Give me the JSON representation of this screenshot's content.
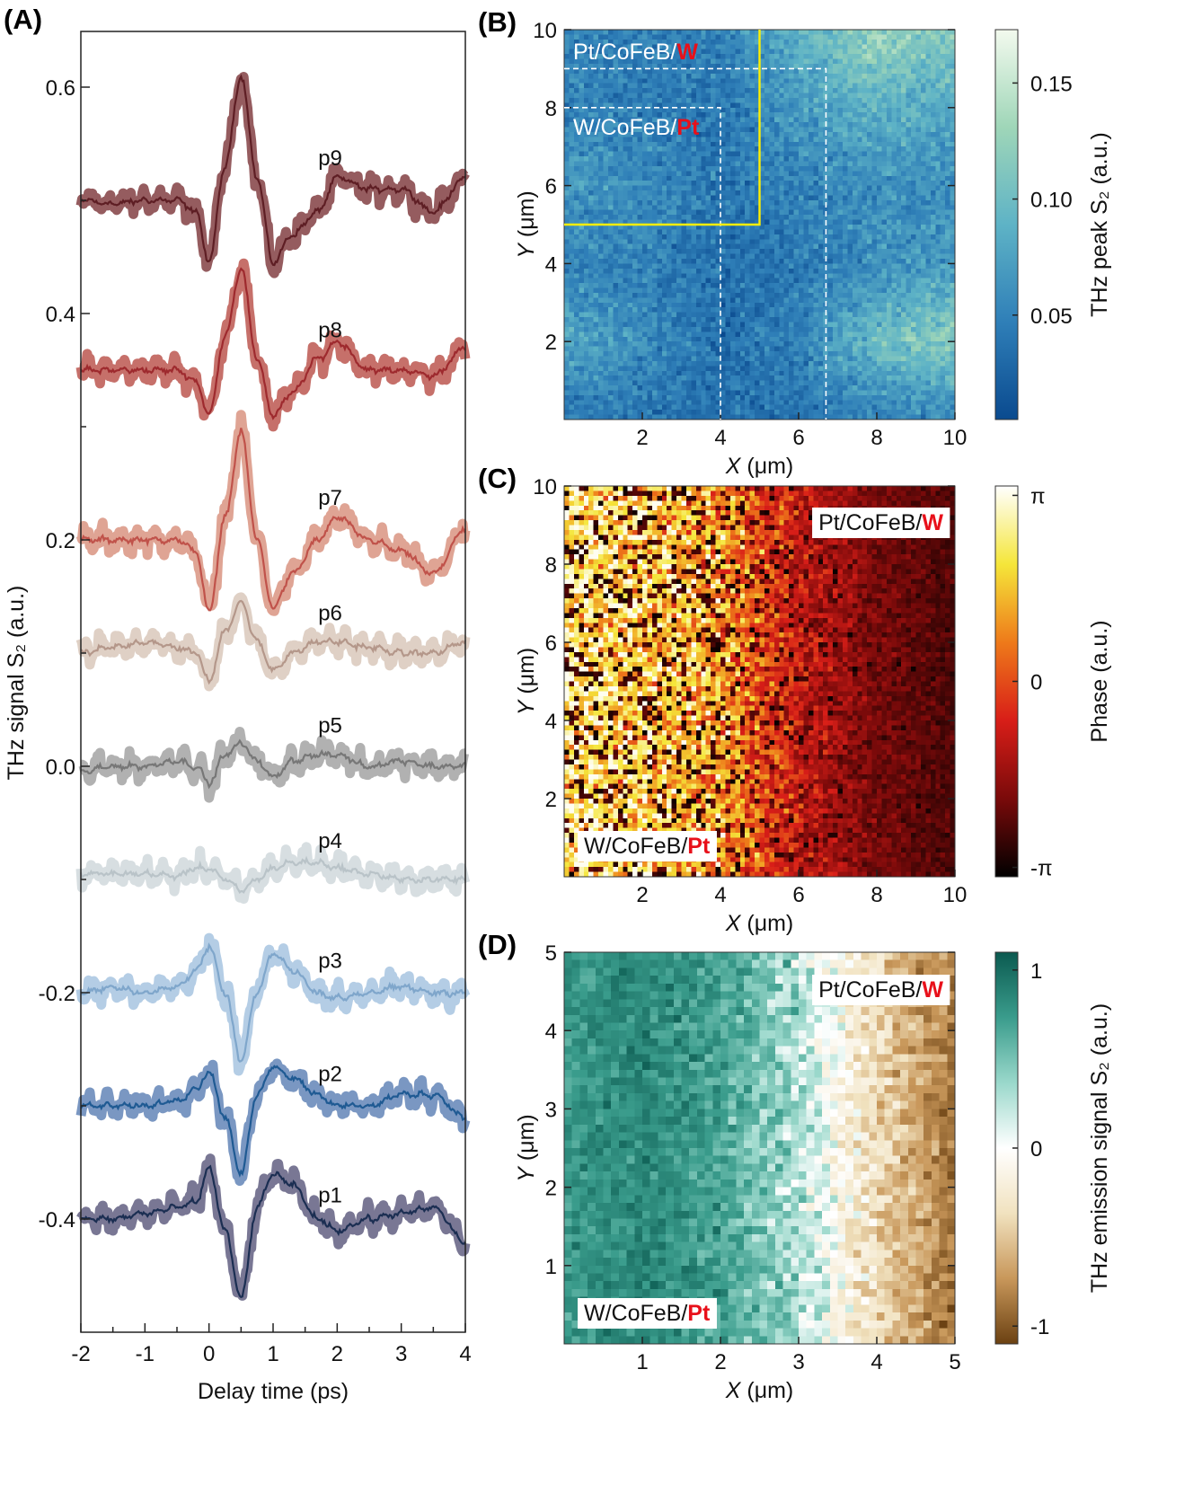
{
  "chart_data": [
    {
      "id": "A",
      "panel_label": "(A)",
      "type": "line",
      "xlabel": "Delay time (ps)",
      "ylabel": "THz signal S₂ (a.u.)",
      "xlim": [
        -2,
        4
      ],
      "ylim": [
        -0.5,
        0.65
      ],
      "xticks": [
        -2,
        -1,
        0,
        1,
        2,
        3,
        4
      ],
      "yticks": [
        -0.4,
        -0.2,
        0.0,
        0.2,
        0.4,
        0.6
      ],
      "ytick_labels": [
        "-0.4",
        "-0.2",
        "0.0",
        "0.2",
        "0.4",
        "0.6"
      ],
      "x": [
        -2,
        -1.5,
        -1,
        -0.5,
        -0.2,
        0,
        0.25,
        0.5,
        0.75,
        1,
        1.3,
        1.7,
        2,
        2.5,
        3,
        3.5,
        4
      ],
      "series": [
        {
          "name": "p9",
          "label_pos": [
            1.9,
            0.538
          ],
          "line_color": "#5e1e24",
          "band_color": "#8a4a4e",
          "values": [
            0.5,
            0.497,
            0.5,
            0.5,
            0.49,
            0.445,
            0.53,
            0.61,
            0.52,
            0.445,
            0.47,
            0.49,
            0.52,
            0.51,
            0.51,
            0.49,
            0.52
          ]
        },
        {
          "name": "p8",
          "label_pos": [
            1.9,
            0.386
          ],
          "line_color": "#9e2a2e",
          "band_color": "#c0605a",
          "values": [
            0.35,
            0.35,
            0.35,
            0.35,
            0.34,
            0.31,
            0.38,
            0.44,
            0.36,
            0.31,
            0.33,
            0.36,
            0.375,
            0.35,
            0.35,
            0.345,
            0.37
          ]
        },
        {
          "name": "p7",
          "label_pos": [
            1.9,
            0.238
          ],
          "line_color": "#c0524a",
          "band_color": "#dc9a88",
          "values": [
            0.2,
            0.2,
            0.2,
            0.2,
            0.19,
            0.135,
            0.22,
            0.295,
            0.2,
            0.14,
            0.17,
            0.2,
            0.22,
            0.2,
            0.19,
            0.17,
            0.21
          ]
        },
        {
          "name": "p6",
          "label_pos": [
            1.9,
            0.136
          ],
          "line_color": "#b4978a",
          "band_color": "#dccbbf",
          "values": [
            0.1,
            0.105,
            0.11,
            0.105,
            0.1,
            0.075,
            0.12,
            0.145,
            0.11,
            0.085,
            0.1,
            0.11,
            0.11,
            0.105,
            0.1,
            0.1,
            0.11
          ]
        },
        {
          "name": "p5",
          "label_pos": [
            1.9,
            0.037
          ],
          "line_color": "#777777",
          "band_color": "#a8a8a8",
          "values": [
            -0.005,
            0,
            0,
            0.005,
            0,
            -0.015,
            0.01,
            0.02,
            0.005,
            -0.01,
            0.005,
            0.01,
            0.01,
            0,
            0.005,
            0,
            0
          ]
        },
        {
          "name": "p4",
          "label_pos": [
            1.9,
            -0.065
          ],
          "line_color": "#b9c3c8",
          "band_color": "#d3dade",
          "values": [
            -0.095,
            -0.095,
            -0.095,
            -0.097,
            -0.09,
            -0.09,
            -0.1,
            -0.11,
            -0.1,
            -0.09,
            -0.085,
            -0.085,
            -0.09,
            -0.095,
            -0.1,
            -0.1,
            -0.1
          ]
        },
        {
          "name": "p3",
          "label_pos": [
            1.9,
            -0.171
          ],
          "line_color": "#7fa6cb",
          "band_color": "#acc8e2",
          "values": [
            -0.2,
            -0.195,
            -0.2,
            -0.195,
            -0.18,
            -0.16,
            -0.2,
            -0.26,
            -0.2,
            -0.165,
            -0.18,
            -0.2,
            -0.205,
            -0.2,
            -0.195,
            -0.2,
            -0.2
          ]
        },
        {
          "name": "p2",
          "label_pos": [
            1.9,
            -0.271
          ],
          "line_color": "#1f5a93",
          "band_color": "#6b8cbb",
          "values": [
            -0.3,
            -0.3,
            -0.3,
            -0.295,
            -0.285,
            -0.27,
            -0.31,
            -0.36,
            -0.29,
            -0.265,
            -0.275,
            -0.29,
            -0.3,
            -0.3,
            -0.29,
            -0.29,
            -0.31
          ]
        },
        {
          "name": "p1",
          "label_pos": [
            1.9,
            -0.378
          ],
          "line_color": "#1b2e52",
          "band_color": "#6a6888",
          "values": [
            -0.4,
            -0.4,
            -0.395,
            -0.39,
            -0.385,
            -0.355,
            -0.41,
            -0.47,
            -0.39,
            -0.36,
            -0.37,
            -0.4,
            -0.41,
            -0.4,
            -0.395,
            -0.39,
            -0.42
          ]
        }
      ]
    },
    {
      "id": "B",
      "panel_label": "(B)",
      "type": "heatmap",
      "xlabel": "X (μm)",
      "xlabel_var": "X",
      "xlabel_unit": " (μm)",
      "ylabel_var": "Y",
      "ylabel_unit": " (μm)",
      "xlim": [
        0,
        10
      ],
      "ylim": [
        0,
        10
      ],
      "xticks": [
        2,
        4,
        6,
        8,
        10
      ],
      "yticks": [
        2,
        4,
        6,
        8,
        10
      ],
      "grid_size": 80,
      "coarse_x": [
        0,
        2,
        4,
        6,
        8,
        10
      ],
      "coarse_y_top_to_bottom": [
        10,
        8,
        6,
        4,
        2,
        0
      ],
      "coarse_values": [
        [
          0.05,
          0.05,
          0.05,
          0.09,
          0.13,
          0.11
        ],
        [
          0.05,
          0.045,
          0.04,
          0.07,
          0.09,
          0.08
        ],
        [
          0.07,
          0.06,
          0.04,
          0.05,
          0.06,
          0.06
        ],
        [
          0.05,
          0.05,
          0.035,
          0.04,
          0.06,
          0.07
        ],
        [
          0.08,
          0.06,
          0.035,
          0.05,
          0.1,
          0.12
        ],
        [
          0.04,
          0.04,
          0.035,
          0.04,
          0.05,
          0.05
        ]
      ],
      "noise": 0.02,
      "colorbar": {
        "label": "THz peak S₂ (a.u.)",
        "range": [
          0.005,
          0.173
        ],
        "ticks": [
          0.05,
          0.1,
          0.15
        ],
        "tick_labels": [
          "0.05",
          "0.10",
          "0.15"
        ],
        "colors": [
          "#0a4a8f",
          "#2f7fb8",
          "#5eb3c6",
          "#9fd6b8",
          "#f3faee"
        ]
      },
      "annotations": [
        {
          "text": "Pt/CoFeB/",
          "highlight": "W"
        },
        {
          "text": "W/CoFeB/",
          "highlight": "Pt"
        }
      ],
      "yellow_box": {
        "x": [
          0,
          5
        ],
        "y": [
          5,
          10
        ],
        "color": "#ffee00"
      },
      "dashed_regions": [
        {
          "x_max": 6.7,
          "y_max": 9
        },
        {
          "x_max": 4,
          "y_max": 8
        }
      ]
    },
    {
      "id": "C",
      "panel_label": "(C)",
      "type": "heatmap",
      "xlabel_var": "X",
      "xlabel_unit": " (μm)",
      "ylabel_var": "Y",
      "ylabel_unit": " (μm)",
      "xlim": [
        0,
        10
      ],
      "ylim": [
        0,
        10
      ],
      "xticks": [
        2,
        4,
        6,
        8,
        10
      ],
      "yticks": [
        2,
        4,
        6,
        8,
        10
      ],
      "grid_size": 80,
      "coarse_x": [
        0,
        2,
        4,
        6,
        8,
        10
      ],
      "column_means": [
        2.4,
        2.0,
        1.2,
        -1.0,
        -2.0,
        -2.5
      ],
      "column_noise": [
        2.5,
        2.5,
        2.6,
        1.6,
        0.7,
        0.5
      ],
      "colorbar": {
        "label": "Phase (a.u.)",
        "range": [
          -3.3,
          3.3
        ],
        "ticks": [
          -3.1416,
          0,
          3.1416
        ],
        "tick_labels": [
          "-π",
          "0",
          "π"
        ],
        "colors": [
          "#000000",
          "#7a0a0a",
          "#d81e18",
          "#ee7a1a",
          "#f5e63a",
          "#ffffff"
        ]
      },
      "annotations": [
        {
          "text": "Pt/CoFeB/",
          "highlight": "W"
        },
        {
          "text": "W/CoFeB/",
          "highlight": "Pt"
        }
      ]
    },
    {
      "id": "D",
      "panel_label": "(D)",
      "type": "heatmap",
      "xlabel_var": "X",
      "xlabel_unit": " (μm)",
      "ylabel_var": "Y",
      "ylabel_unit": " (μm)",
      "xlim": [
        0,
        5
      ],
      "ylim": [
        0,
        5
      ],
      "xticks": [
        1,
        2,
        3,
        4,
        5
      ],
      "yticks": [
        1,
        2,
        3,
        4,
        5
      ],
      "grid_size": 50,
      "coarse_x": [
        0,
        1,
        2,
        3,
        4,
        5
      ],
      "column_means": [
        0.75,
        0.85,
        0.7,
        0.3,
        -0.4,
        -0.9
      ],
      "column_noise": [
        0.15,
        0.15,
        0.2,
        0.3,
        0.25,
        0.2
      ],
      "colorbar": {
        "label": "THz emission signal S₂ (a.u.)",
        "range": [
          -1.1,
          1.1
        ],
        "ticks": [
          -1,
          0,
          1
        ],
        "tick_labels": [
          "-1",
          "0",
          "1"
        ],
        "colors": [
          "#6b4112",
          "#c8975a",
          "#f1e2bf",
          "#ffffff",
          "#9ad8cb",
          "#3a9c8c",
          "#0b5a50"
        ]
      },
      "annotations": [
        {
          "text": "Pt/CoFeB/",
          "highlight": "W"
        },
        {
          "text": "W/CoFeB/",
          "highlight": "Pt"
        }
      ]
    }
  ]
}
